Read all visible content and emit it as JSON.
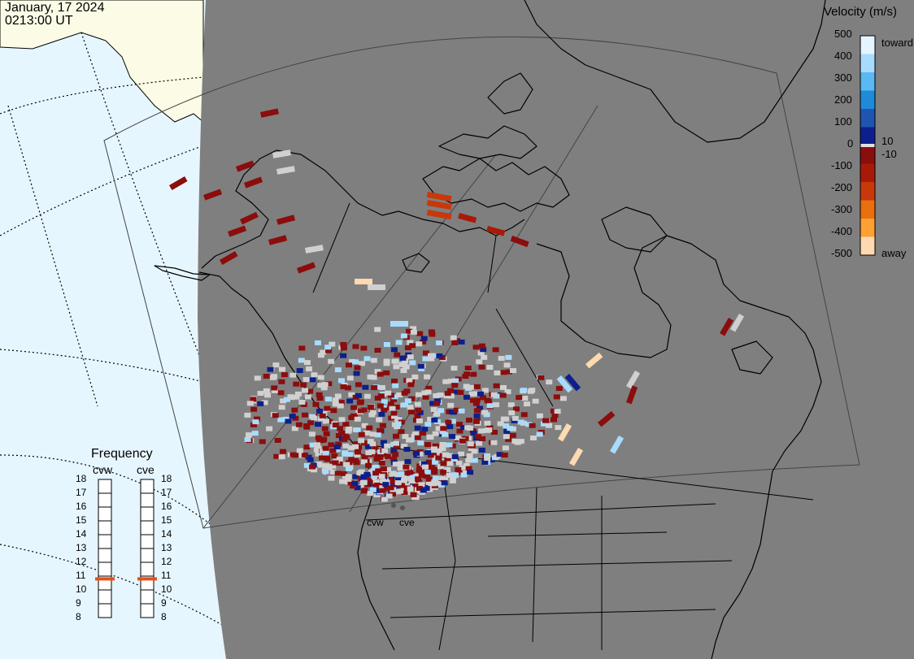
{
  "header": {
    "date": "January, 17 2024",
    "time": "0213:00 UT"
  },
  "velocity_legend": {
    "title": "Velocity (m/s)",
    "ticks": [
      "500",
      "400",
      "300",
      "200",
      "100",
      "0",
      "-100",
      "-200",
      "-300",
      "-400",
      "-500"
    ],
    "inner_labels": [
      "10",
      "-10"
    ],
    "toward_label": "toward",
    "away_label": "away",
    "colors": [
      "#e6f4ff",
      "#a8dcff",
      "#5ab8f4",
      "#1f8ad8",
      "#1f55b0",
      "#0c1f8c",
      "#8b0d0d",
      "#a81a08",
      "#c8380a",
      "#e8700e",
      "#ffa033",
      "#ffd9b0"
    ],
    "lowvel_color": "#e0e0e0"
  },
  "frequency_legend": {
    "title": "Frequency",
    "ticks": [
      "18",
      "17",
      "16",
      "15",
      "14",
      "13",
      "12",
      "11",
      "10",
      "9",
      "8"
    ],
    "radars": [
      {
        "name": "cvw",
        "value": 10.8
      },
      {
        "name": "cve",
        "value": 10.8
      }
    ],
    "marker_color": "#e8501a"
  },
  "radar_sites": [
    "cvw",
    "cve"
  ],
  "map_colors": {
    "ocean_light": "#e6f6ff",
    "land_light": "#fbfbe6",
    "sphere": "#7f7f7f",
    "coast": "#000000",
    "grid": "#000000"
  }
}
